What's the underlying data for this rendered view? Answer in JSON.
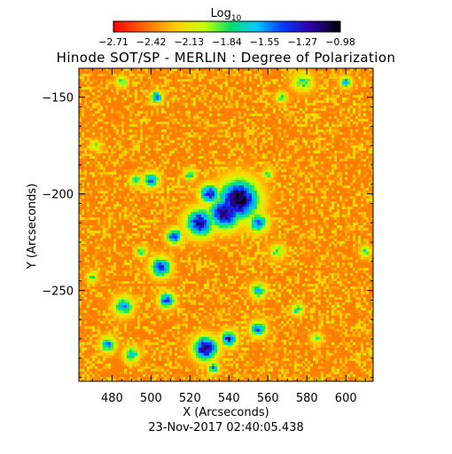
{
  "chart_data": {
    "type": "heatmap",
    "title": "Hinode SOT/SP - MERLIN : Degree of Polarization",
    "footer": "23-Nov-2017 02:40:05.438",
    "xlabel": "X (Arcseconds)",
    "ylabel": "Y (Arcseconds)",
    "xlim": [
      463,
      614
    ],
    "ylim": [
      -297,
      -135
    ],
    "xticks": [
      480,
      500,
      520,
      540,
      560,
      580,
      600
    ],
    "yticks": [
      -150,
      -200,
      -250
    ],
    "colorbar": {
      "label_base": "Log",
      "label_sub": "10",
      "range": [
        -2.71,
        -0.98
      ],
      "ticks": [
        "-2.71",
        "-2.42",
        "-2.13",
        "-1.84",
        "-1.55",
        "-1.27",
        "-0.98"
      ],
      "colormap": "rainbow-reverse"
    },
    "background_log_dop": -2.42,
    "features": [
      {
        "x": 545,
        "y": -203,
        "size": 10,
        "value": -1.0
      },
      {
        "x": 538,
        "y": -210,
        "size": 8,
        "value": -1.1
      },
      {
        "x": 525,
        "y": -215,
        "size": 7,
        "value": -1.2
      },
      {
        "x": 530,
        "y": -200,
        "size": 5,
        "value": -1.3
      },
      {
        "x": 512,
        "y": -222,
        "size": 4,
        "value": -1.4
      },
      {
        "x": 555,
        "y": -215,
        "size": 5,
        "value": -1.5
      },
      {
        "x": 528,
        "y": -280,
        "size": 6,
        "value": -1.1
      },
      {
        "x": 540,
        "y": -275,
        "size": 4,
        "value": -1.3
      },
      {
        "x": 555,
        "y": -270,
        "size": 4,
        "value": -1.5
      },
      {
        "x": 508,
        "y": -255,
        "size": 4,
        "value": -1.4
      },
      {
        "x": 505,
        "y": -238,
        "size": 5,
        "value": -1.3
      },
      {
        "x": 486,
        "y": -258,
        "size": 5,
        "value": -1.6
      },
      {
        "x": 478,
        "y": -278,
        "size": 4,
        "value": -1.6
      },
      {
        "x": 490,
        "y": -283,
        "size": 4,
        "value": -1.7
      },
      {
        "x": 500,
        "y": -193,
        "size": 4,
        "value": -1.5
      },
      {
        "x": 492,
        "y": -193,
        "size": 3,
        "value": -1.7
      },
      {
        "x": 485,
        "y": -142,
        "size": 3,
        "value": -1.8
      },
      {
        "x": 503,
        "y": -150,
        "size": 3,
        "value": -1.5
      },
      {
        "x": 578,
        "y": -142,
        "size": 5,
        "value": -1.8
      },
      {
        "x": 600,
        "y": -142,
        "size": 3,
        "value": -1.6
      },
      {
        "x": 567,
        "y": -150,
        "size": 3,
        "value": -1.8
      },
      {
        "x": 565,
        "y": -230,
        "size": 4,
        "value": -1.9
      },
      {
        "x": 555,
        "y": -250,
        "size": 4,
        "value": -1.7
      },
      {
        "x": 575,
        "y": -260,
        "size": 3,
        "value": -1.7
      },
      {
        "x": 585,
        "y": -275,
        "size": 3,
        "value": -1.9
      },
      {
        "x": 610,
        "y": -230,
        "size": 3,
        "value": -1.8
      },
      {
        "x": 495,
        "y": -230,
        "size": 3,
        "value": -1.8
      },
      {
        "x": 472,
        "y": -175,
        "size": 3,
        "value": -2.0
      },
      {
        "x": 470,
        "y": -243,
        "size": 3,
        "value": -1.9
      },
      {
        "x": 532,
        "y": -290,
        "size": 3,
        "value": -1.6
      },
      {
        "x": 520,
        "y": -190,
        "size": 3,
        "value": -1.7
      },
      {
        "x": 560,
        "y": -190,
        "size": 3,
        "value": -1.9
      }
    ]
  }
}
